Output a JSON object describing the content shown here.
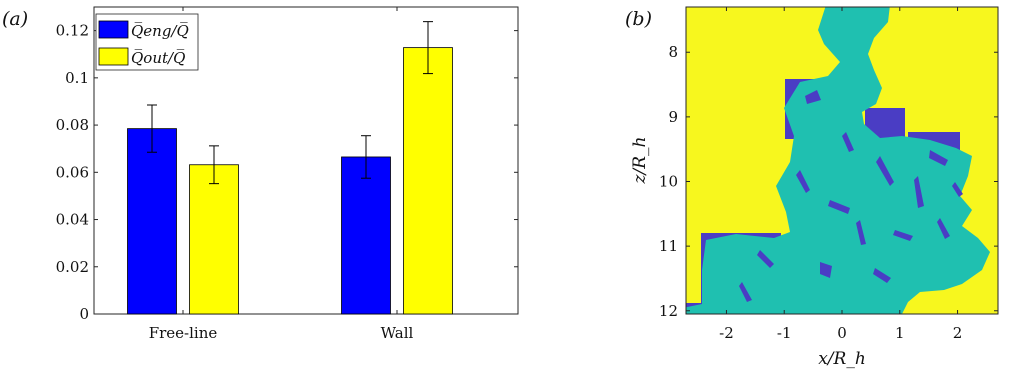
{
  "panel_labels": [
    "(a)",
    "(b)"
  ],
  "chart_data": [
    {
      "type": "bar",
      "categories": [
        "Free-line",
        "Wall"
      ],
      "series": [
        {
          "name": "Q_eng/Q",
          "legend_text": "Q̅eng/Q̅",
          "color": "#0000ff",
          "values": [
            0.0785,
            0.0665
          ],
          "errors": [
            0.01,
            0.009
          ]
        },
        {
          "name": "Q_out/Q",
          "legend_text": "Q̅out/Q̅",
          "color": "#ffff00",
          "values": [
            0.0632,
            0.1128
          ],
          "errors": [
            0.008,
            0.011
          ]
        }
      ],
      "ylim": [
        0,
        0.13
      ],
      "yticks": [
        0,
        0.02,
        0.04,
        0.06,
        0.08,
        0.1,
        0.12
      ],
      "ytick_labels": [
        "0",
        "0.02",
        "0.04",
        "0.06",
        "0.08",
        "0.1",
        "0.12"
      ],
      "legend_position": "top-left"
    },
    {
      "type": "heatmap",
      "xlabel": "x/R_h",
      "ylabel": "z/R_h",
      "xlim": [
        -2.7,
        2.7
      ],
      "ylim": [
        7.3,
        12.05
      ],
      "y_inverted": true,
      "xticks": [
        -2,
        -1,
        0,
        1,
        2
      ],
      "xtick_labels": [
        "-2",
        "-1",
        "0",
        "1",
        "2"
      ],
      "yticks": [
        8,
        9,
        10,
        11,
        12
      ],
      "ytick_labels": [
        "8",
        "9",
        "10",
        "11",
        "12"
      ],
      "colors": {
        "background": "#f7f71e",
        "plume": "#1fc0b0",
        "engulfed": "#4a3dc4"
      }
    }
  ]
}
